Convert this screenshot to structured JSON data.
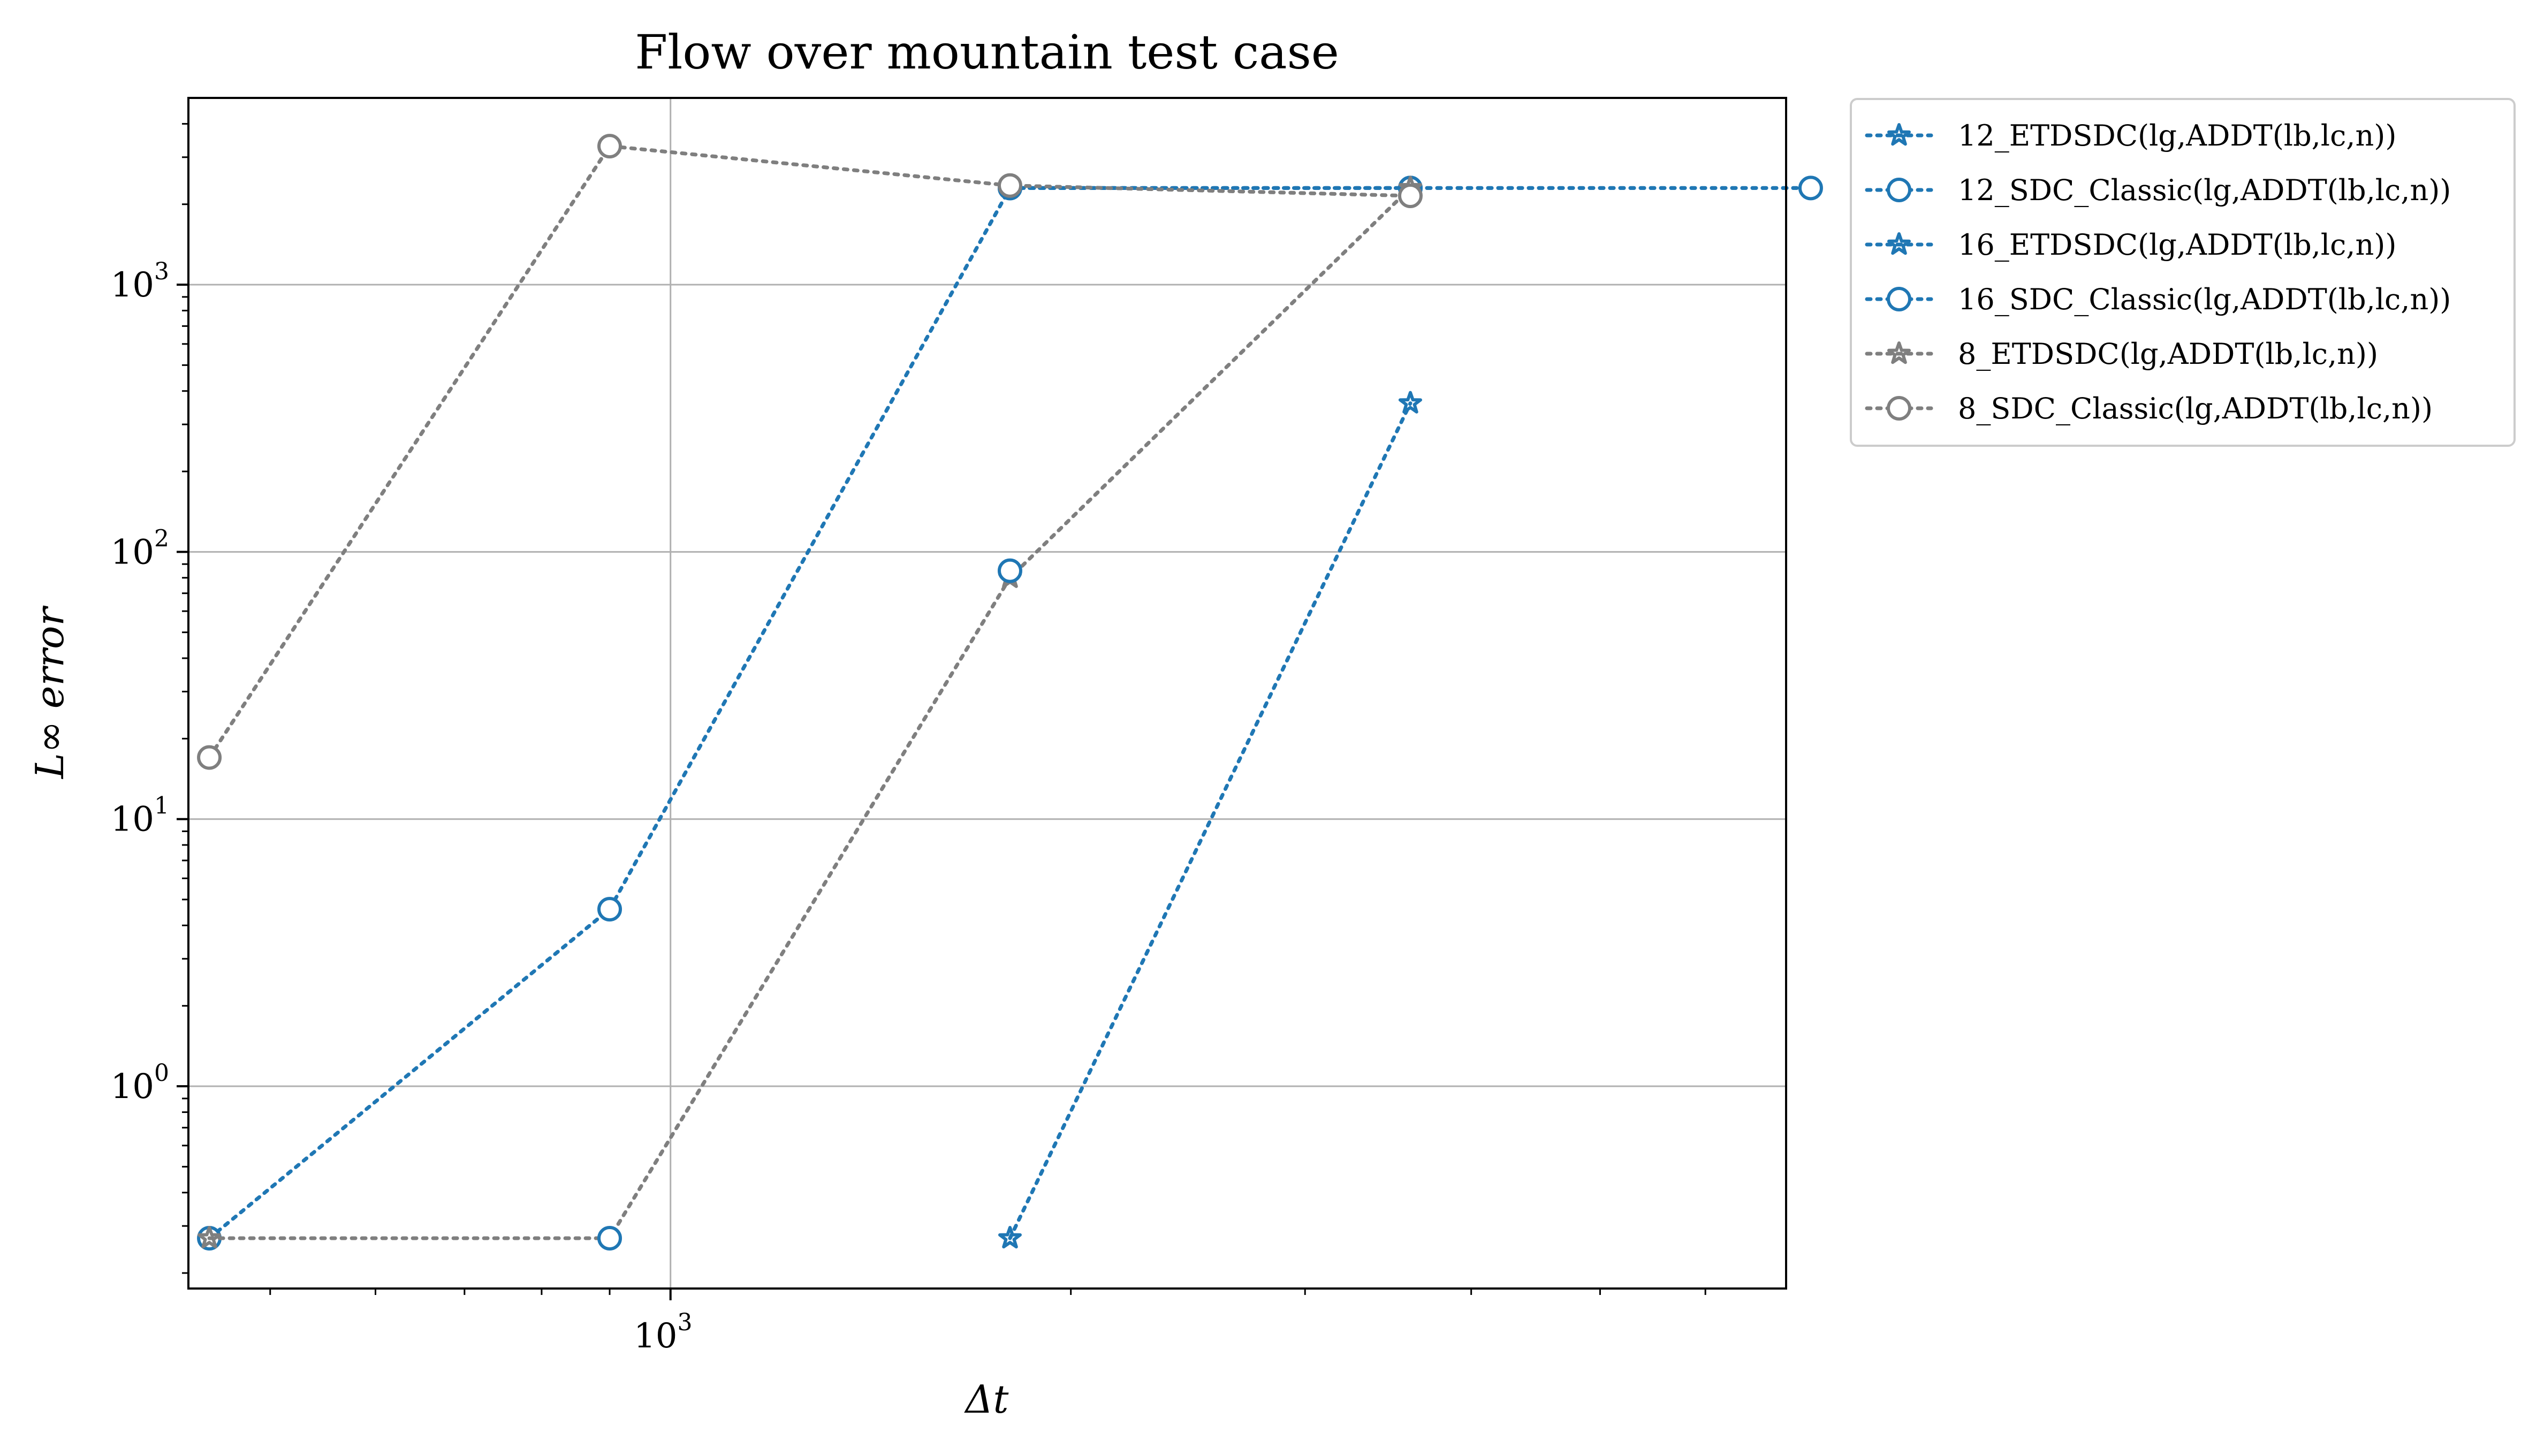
{
  "chart_data": {
    "type": "line",
    "title": "Flow over mountain test case",
    "xlabel": "Δt",
    "ylabel": "L∞ error",
    "xscale": "log",
    "yscale": "log",
    "xlim": [
      434,
      6900
    ],
    "ylim": [
      0.175,
      5000
    ],
    "grid": true,
    "legend_position": "outside-top-right",
    "x_tick_labels": [
      {
        "value": 1000,
        "base": "10",
        "exp": "3"
      }
    ],
    "y_tick_labels": [
      {
        "value": 1,
        "base": "10",
        "exp": "0"
      },
      {
        "value": 10,
        "base": "10",
        "exp": "1"
      },
      {
        "value": 100,
        "base": "10",
        "exp": "2"
      },
      {
        "value": 1000,
        "base": "10",
        "exp": "3"
      }
    ],
    "series": [
      {
        "name": "12_ETDSDC(lg,ADDT(lb,lc,n))",
        "color": "#1f77b4",
        "marker": "star",
        "x": [
          1800,
          3600,
          7200
        ],
        "y": [
          2300,
          2300,
          2300
        ]
      },
      {
        "name": "12_SDC_Classic(lg,ADDT(lb,lc,n))",
        "color": "#1f77b4",
        "marker": "circle",
        "x": [
          1800,
          3600,
          7200
        ],
        "y": [
          2300,
          2300,
          2300
        ]
      },
      {
        "name": "16_ETDSDC(lg,ADDT(lb,lc,n))",
        "color": "#1f77b4",
        "marker": "star",
        "x": [
          1800,
          3600
        ],
        "y": [
          0.27,
          360
        ]
      },
      {
        "name": "16_SDC_Classic(lg,ADDT(lb,lc,n))",
        "color": "#1f77b4",
        "marker": "circle",
        "x": [
          450,
          900,
          1800,
          3600
        ],
        "y": [
          0.27,
          4.6,
          2300,
          2300
        ]
      },
      {
        "name": "8_ETDSDC(lg,ADDT(lb,lc,n))",
        "color": "#7f7f7f",
        "marker": "star",
        "x": [
          450,
          900,
          1800,
          3600
        ],
        "y": [
          0.27,
          0.27,
          80,
          2300
        ]
      },
      {
        "name": "8_SDC_Classic(lg,ADDT(lb,lc,n))",
        "color": "#7f7f7f",
        "marker": "circle",
        "x": [
          450,
          900,
          1800,
          3600
        ],
        "y": [
          17,
          3300,
          2350,
          2150
        ]
      }
    ],
    "extra_markers": [
      {
        "series": "16_SDC_Classic(lg,ADDT(lb,lc,n))",
        "x": 1800,
        "y": 85
      },
      {
        "series": "16_SDC_Classic(lg,ADDT(lb,lc,n))",
        "x": 900,
        "y": 0.27
      }
    ]
  }
}
